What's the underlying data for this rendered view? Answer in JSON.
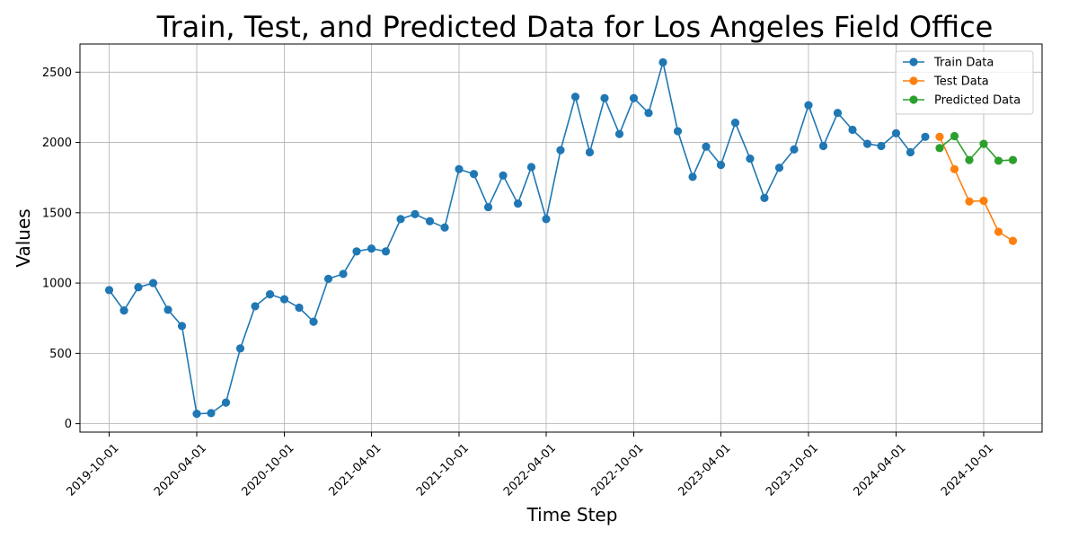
{
  "chart_data": {
    "type": "line",
    "title": "Train, Test, and Predicted Data for Los Angeles Field Office",
    "xlabel": "Time Step",
    "ylabel": "Values",
    "ylim": [
      -60,
      2700
    ],
    "xlim": [
      "2019-08-01",
      "2025-01-31"
    ],
    "yticks": [
      0,
      500,
      1000,
      1500,
      2000,
      2500
    ],
    "xticks": [
      "2019-10-01",
      "2020-04-01",
      "2020-10-01",
      "2021-04-01",
      "2021-10-01",
      "2022-04-01",
      "2022-10-01",
      "2023-04-01",
      "2023-10-01",
      "2024-04-01",
      "2024-10-01"
    ],
    "grid": true,
    "legend_position": "top-right",
    "series": [
      {
        "name": "Train Data",
        "color": "#1f77b4",
        "x": [
          "2019-10-01",
          "2019-11-01",
          "2019-12-01",
          "2020-01-01",
          "2020-02-01",
          "2020-03-01",
          "2020-04-01",
          "2020-05-01",
          "2020-06-01",
          "2020-07-01",
          "2020-08-01",
          "2020-09-01",
          "2020-10-01",
          "2020-11-01",
          "2020-12-01",
          "2021-01-01",
          "2021-02-01",
          "2021-03-01",
          "2021-04-01",
          "2021-05-01",
          "2021-06-01",
          "2021-07-01",
          "2021-08-01",
          "2021-09-01",
          "2021-10-01",
          "2021-11-01",
          "2021-12-01",
          "2022-01-01",
          "2022-02-01",
          "2022-03-01",
          "2022-04-01",
          "2022-05-01",
          "2022-06-01",
          "2022-07-01",
          "2022-08-01",
          "2022-09-01",
          "2022-10-01",
          "2022-11-01",
          "2022-12-01",
          "2023-01-01",
          "2023-02-01",
          "2023-03-01",
          "2023-04-01",
          "2023-05-01",
          "2023-06-01",
          "2023-07-01",
          "2023-08-01",
          "2023-09-01",
          "2023-10-01",
          "2023-11-01",
          "2023-12-01",
          "2024-01-01",
          "2024-02-01",
          "2024-03-01",
          "2024-04-01",
          "2024-05-01",
          "2024-06-01"
        ],
        "values": [
          950,
          805,
          970,
          1000,
          810,
          695,
          70,
          75,
          150,
          535,
          835,
          920,
          885,
          825,
          725,
          1030,
          1065,
          1225,
          1245,
          1225,
          1455,
          1490,
          1440,
          1395,
          1810,
          1775,
          1540,
          1765,
          1565,
          1825,
          1455,
          1945,
          2325,
          1930,
          2315,
          2060,
          2315,
          2210,
          2570,
          2080,
          1755,
          1970,
          1840,
          2140,
          1885,
          1605,
          1820,
          1950,
          2265,
          1975,
          2210,
          2090,
          1990,
          1975,
          2065,
          1930,
          2040
        ]
      },
      {
        "name": "Test Data",
        "color": "#ff7f0e",
        "x": [
          "2024-07-01",
          "2024-08-01",
          "2024-09-01",
          "2024-10-01",
          "2024-11-01",
          "2024-12-01"
        ],
        "values": [
          2040,
          1810,
          1580,
          1585,
          1365,
          1300
        ]
      },
      {
        "name": "Predicted Data",
        "color": "#2ca02c",
        "x": [
          "2024-07-01",
          "2024-08-01",
          "2024-09-01",
          "2024-10-01",
          "2024-11-01",
          "2024-12-01"
        ],
        "values": [
          1960,
          2045,
          1875,
          1990,
          1870,
          1875
        ]
      }
    ]
  }
}
